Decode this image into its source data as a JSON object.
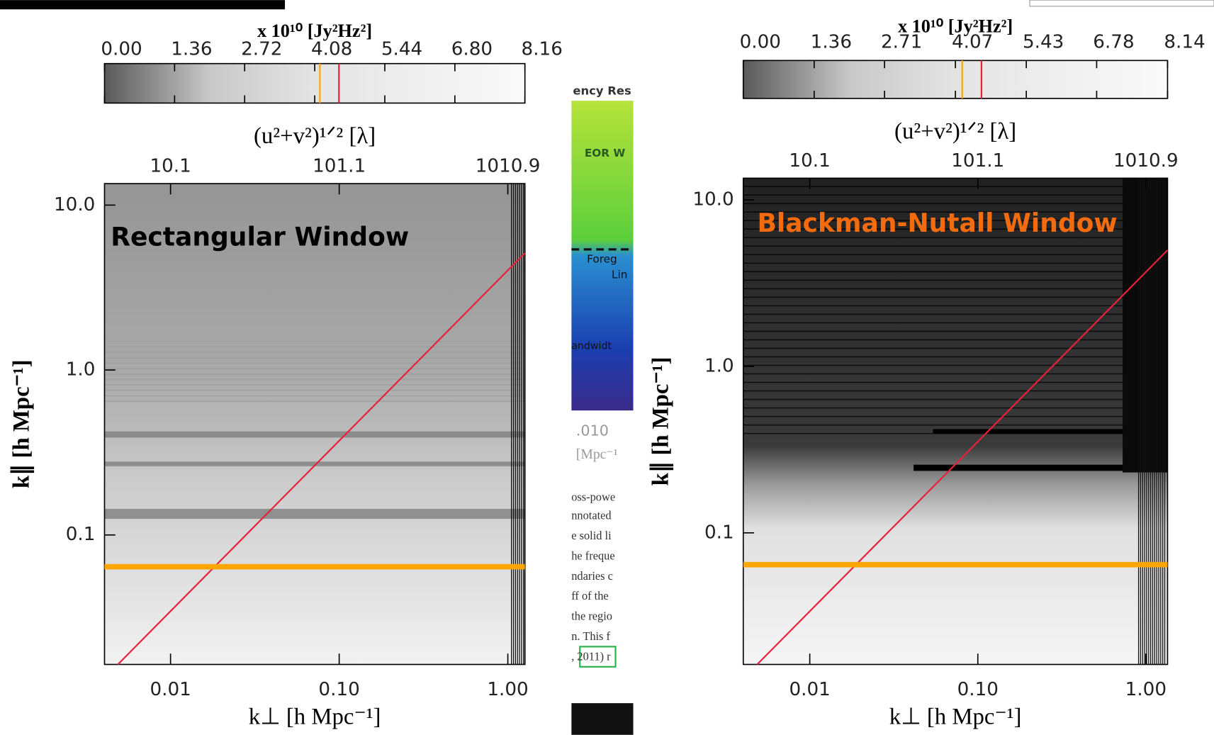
{
  "charts": [
    {
      "type": "heatmap",
      "title": "Rectangular Window",
      "title_color": "#000000",
      "xlabel": "k⊥ [h Mpc⁻¹]",
      "ylabel": "k∥ [h Mpc⁻¹]",
      "x2label": "(u²+v²)¹ᐟ² [λ]",
      "xscale": "log",
      "yscale": "log",
      "xlim": [
        0.00406,
        1.263
      ],
      "ylim": [
        0.0164,
        13.5
      ],
      "xticks": [
        0.01,
        {
          "value": 0.1,
          "label": "0.10"
        },
        {
          "value": 1,
          "label": "1.00"
        }
      ],
      "yticks": [
        {
          "value": 0.1,
          "label": "0.1"
        },
        {
          "value": 1,
          "label": "1.0"
        },
        {
          "value": 10,
          "label": "10.0"
        }
      ],
      "x2lim": [
        4.1,
        1277
      ],
      "x2ticks": [
        10.1,
        101.1,
        1010.9
      ],
      "colorbar": {
        "label": "x 10¹⁰ [Jy²Hz²]",
        "lim": [
          0,
          8.16
        ],
        "ticks": [
          {
            "value": 0,
            "label": "0.00"
          },
          1.36,
          2.72,
          4.08,
          5.44,
          {
            "value": 6.8,
            "label": "6.80"
          },
          8.16
        ],
        "markers": [
          {
            "value": 4.18,
            "color": "#ffa500"
          },
          {
            "value": 4.55,
            "color": "#e8203c"
          }
        ]
      },
      "series": [
        {
          "color": "#e8203c",
          "x": [
            0.00487,
            1.263
          ],
          "values": [
            0.0164,
            5.12
          ]
        },
        {
          "color": "#ffa500",
          "x": [
            0.00406,
            1.263
          ],
          "values": [
            0.0642,
            0.0642
          ]
        }
      ]
    },
    {
      "type": "heatmap",
      "title": "Blackman-Nutall Window",
      "title_color": "#f26b0f",
      "xlabel": "k⊥ [h Mpc⁻¹]",
      "ylabel": "k∥ [h Mpc⁻¹]",
      "x2label": "(u²+v²)¹ᐟ² [λ]",
      "xscale": "log",
      "yscale": "log",
      "xlim": [
        0.00402,
        1.346
      ],
      "ylim": [
        0.0162,
        13.5
      ],
      "xticks": [
        0.01,
        {
          "value": 0.1,
          "label": "0.10"
        },
        {
          "value": 1,
          "label": "1.00"
        }
      ],
      "yticks": [
        {
          "value": 0.1,
          "label": "0.1"
        },
        {
          "value": 1,
          "label": "1.0"
        },
        {
          "value": 10,
          "label": "10.0"
        }
      ],
      "x2lim": [
        4.06,
        1361
      ],
      "x2ticks": [
        10.1,
        101.1,
        1010.9
      ],
      "colorbar": {
        "label": "x 10¹⁰ [Jy²Hz²]",
        "lim": [
          0,
          8.14
        ],
        "ticks": [
          {
            "value": 0,
            "label": "0.00"
          },
          1.36,
          2.71,
          4.07,
          5.43,
          6.78,
          8.14
        ],
        "markers": [
          {
            "value": 4.2,
            "color": "#ffa500"
          },
          {
            "value": 4.57,
            "color": "#e8203c"
          }
        ]
      },
      "series": [
        {
          "color": "#e8203c",
          "x": [
            0.00486,
            1.346
          ],
          "values": [
            0.0162,
            4.99
          ]
        },
        {
          "color": "#ffa500",
          "x": [
            0.00402,
            1.346
          ],
          "values": [
            0.0644,
            0.0644
          ]
        }
      ]
    }
  ],
  "background_fragments": [
    "ency Res",
    "EOR W",
    "Foreg",
    "Lin",
    "andwidt",
    ".010",
    "[Mpc⁻¹",
    "oss-powe",
    "nnotated",
    "e solid li",
    "he freque",
    "ndaries c",
    "ff of the",
    "the regio",
    "n. This f",
    ", 2011) r"
  ]
}
